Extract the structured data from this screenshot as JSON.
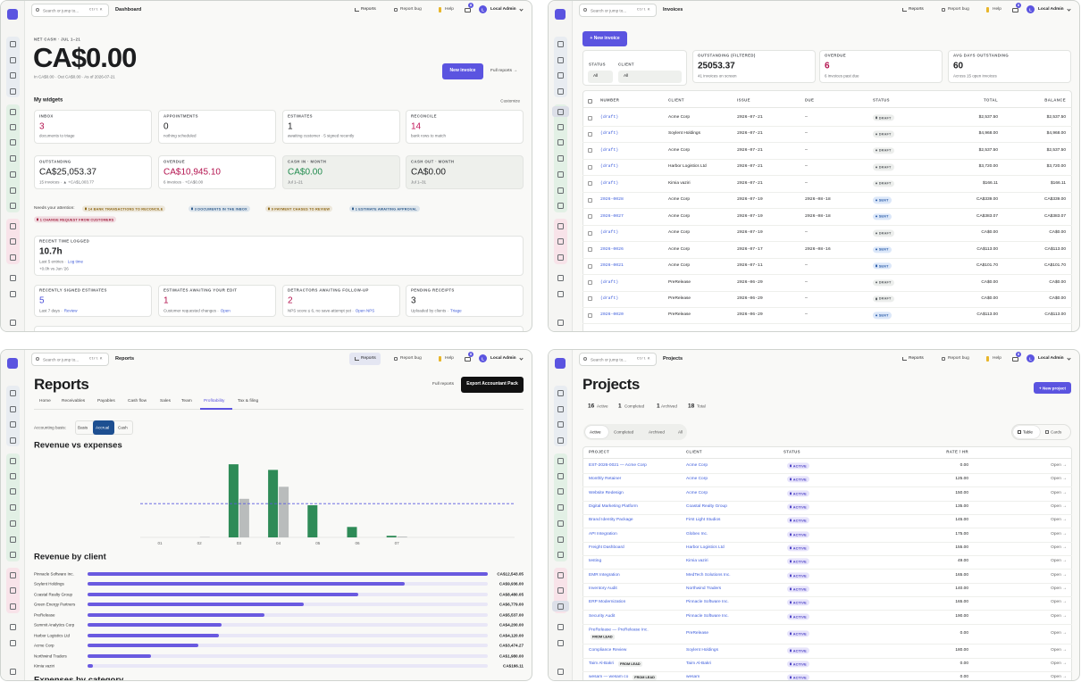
{
  "topbar": {
    "search": "Search or jump to...",
    "shortcut": "Ctrl K",
    "reports": "Reports",
    "report_bug": "Report bug",
    "help": "Help",
    "badge": "8",
    "avatar": "L",
    "user": "Local Admin"
  },
  "dashboard": {
    "page_title": "Dashboard",
    "net_cash_label": "NET CASH · JUL 1–21",
    "net_cash": "CA$0.00",
    "net_cash_sub": "In CA$0.00 · Out CA$0.00 · As of 2026-07-21",
    "new_invoice": "New invoice",
    "full_reports": "Full reports →",
    "widgets_title": "My widgets",
    "customize": "Customize",
    "widgets": [
      {
        "label": "INBOX",
        "value": "3",
        "sub": "documents to triage",
        "color": "#b3124e"
      },
      {
        "label": "APPOINTMENTS",
        "value": "0",
        "sub": "nothing scheduled",
        "color": "#1c1d1f"
      },
      {
        "label": "ESTIMATES",
        "value": "1",
        "sub": "awaiting customer · 5 signed recently",
        "color": "#1c1d1f"
      },
      {
        "label": "RECONCILE",
        "value": "14",
        "sub": "bank rows to match",
        "color": "#c2185b"
      }
    ],
    "money": [
      {
        "label": "OUTSTANDING",
        "value": "CA$25,053.37",
        "sub": "15 invoices · ▲ +CA$1,003.77",
        "color": "#1c1d1f"
      },
      {
        "label": "OVERDUE",
        "value": "CA$10,945.10",
        "sub": "6 invoices · +CA$0.00",
        "color": "#b3124e"
      },
      {
        "label": "CASH IN · MONTH",
        "value": "CA$0.00",
        "sub": "Jul 1–21",
        "color": "#1f8a4c",
        "background": "#eef0ec"
      },
      {
        "label": "CASH OUT · MONTH",
        "value": "CA$0.00",
        "sub": "Jul 1–31",
        "color": "#1c1d1f",
        "background": "#eef0ec"
      }
    ],
    "attention_label": "Needs your attention:",
    "attention": [
      {
        "text": "14 BANK TRANSACTIONS TO RECONCILE",
        "color": "#8a6410"
      },
      {
        "text": "3 DOCUMENTS IN THE INBOX",
        "color": "#2d5a8a"
      },
      {
        "text": "9 PAYMENT CHASES TO REVIEW",
        "color": "#8a6410"
      },
      {
        "text": "1 ESTIMATE AWAITING APPROVAL",
        "color": "#2d5a8a"
      },
      {
        "text": "1 CHANGE REQUEST FROM CUSTOMERS",
        "color": "#a3213f"
      }
    ],
    "time": {
      "label": "RECENT TIME LOGGED",
      "value": "10.7h",
      "sub": "Last 5 entries ·",
      "link": "Log time",
      "delta": "+0.0h vs Jun '26"
    },
    "bottom": [
      {
        "label": "RECENTLY SIGNED ESTIMATES",
        "value": "5",
        "sub": "Last 7 days ·",
        "link": "Review",
        "color": "#4b4fd8"
      },
      {
        "label": "ESTIMATES AWAITING YOUR EDIT",
        "value": "1",
        "sub": "Customer requested changes ·",
        "link": "Open",
        "color": "#b3124e"
      },
      {
        "label": "DETRACTORS AWAITING FOLLOW-UP",
        "value": "2",
        "sub": "NPS score ≤ 6, no save-attempt yet ·",
        "link": "Open NPS",
        "color": "#b3124e"
      },
      {
        "label": "PENDING RECEIPTS",
        "value": "3",
        "sub": "Uploaded by clients ·",
        "link": "Triage",
        "color": "#1c1d1f"
      }
    ]
  },
  "invoices": {
    "page_title": "Invoices",
    "new_invoice": "+ New invoice",
    "status_label": "STATUS",
    "status_value": "All",
    "client_label": "CLIENT",
    "client_value": "All",
    "stats": [
      {
        "label": "OUTSTANDING (FILTERED)",
        "value": "25053.37",
        "sub": "41 invoices on screen",
        "color": "#1c1d1f"
      },
      {
        "label": "OVERDUE",
        "value": "6",
        "sub": "6 invoices past due",
        "color": "#b3124e"
      },
      {
        "label": "AVG DAYS OUTSTANDING",
        "value": "60",
        "sub": "Across 15 open invoices",
        "color": "#1c1d1f"
      }
    ],
    "columns": [
      "NUMBER",
      "CLIENT",
      "ISSUE",
      "DUE",
      "STATUS",
      "TOTAL",
      "BALANCE"
    ],
    "status_colors": {
      "DRAFT": [
        "#eceeec",
        "#5b5f63"
      ],
      "SENT": [
        "#dbe7f9",
        "#2d5ea9"
      ]
    },
    "rows": [
      [
        "(draft)",
        "Acme Corp",
        "2026-07-21",
        "—",
        "DRAFT",
        "$2,537.50",
        "$2,537.50"
      ],
      [
        "(draft)",
        "Soylent Holdings",
        "2026-07-21",
        "—",
        "DRAFT",
        "$4,968.00",
        "$4,968.00"
      ],
      [
        "(draft)",
        "Acme Corp",
        "2026-07-21",
        "—",
        "DRAFT",
        "$2,537.50",
        "$2,537.50"
      ],
      [
        "(draft)",
        "Harbor Logistics Ltd",
        "2026-07-21",
        "—",
        "DRAFT",
        "$3,720.00",
        "$3,720.00"
      ],
      [
        "(draft)",
        "Kimia vaziri",
        "2026-07-21",
        "—",
        "DRAFT",
        "$166.11",
        "$166.11"
      ],
      [
        "2026-0028",
        "Acme Corp",
        "2026-07-19",
        "2026-08-18",
        "SENT",
        "CA$339.00",
        "CA$339.00"
      ],
      [
        "2026-0027",
        "Acme Corp",
        "2026-07-19",
        "2026-08-18",
        "SENT",
        "CA$383.07",
        "CA$383.07"
      ],
      [
        "(draft)",
        "Acme Corp",
        "2026-07-19",
        "—",
        "DRAFT",
        "CA$0.00",
        "CA$0.00"
      ],
      [
        "2026-0026",
        "Acme Corp",
        "2026-07-17",
        "2026-08-16",
        "SENT",
        "CA$113.00",
        "CA$113.00"
      ],
      [
        "2026-0021",
        "Acme Corp",
        "2026-07-11",
        "—",
        "SENT",
        "CA$101.70",
        "CA$101.70"
      ],
      [
        "(draft)",
        "PreRelease",
        "2026-06-29",
        "—",
        "DRAFT",
        "CA$0.00",
        "CA$0.00"
      ],
      [
        "(draft)",
        "PreRelease",
        "2026-06-29",
        "—",
        "DRAFT",
        "CA$0.00",
        "CA$0.00"
      ],
      [
        "2026-0020",
        "PreRelease",
        "2026-06-29",
        "—",
        "SENT",
        "CA$113.00",
        "CA$113.00"
      ]
    ]
  },
  "reports": {
    "page_title": "Reports",
    "full_reports": "Full reports",
    "export": "Export Accountant Pack",
    "tabs": [
      "Home",
      "Receivables",
      "Payables",
      "Cash flow",
      "Sales",
      "Team",
      "Profitability",
      "Tax & filing"
    ],
    "active_tab": 6,
    "basis_label": "Accounting basis:",
    "basis_options": [
      "Basis",
      "Accrual",
      "Cash"
    ],
    "active_basis": 1,
    "revenue_vs_expenses": {
      "type": "bar",
      "title": "Revenue vs expenses",
      "categories": [
        "01",
        "02",
        "03",
        "04",
        "05",
        "06",
        "07"
      ],
      "series": [
        {
          "color": "#2e8b57",
          "values": [
            0,
            0,
            91,
            84,
            40,
            13,
            2
          ]
        },
        {
          "color": "#b9bcbc",
          "values": [
            0,
            0.5,
            48,
            63,
            0,
            0,
            1
          ]
        }
      ],
      "reference_line": 42,
      "reference_color": "#5a5ae0",
      "ylim": [
        0,
        100
      ]
    },
    "revenue_by_client": {
      "type": "bar",
      "title": "Revenue by client",
      "categories": [
        "Pinnacle Software Inc.",
        "Soylent Holdings",
        "Coastal Realty Group",
        "Green Energy Partners",
        "PreRelease",
        "Summit Analytics Corp",
        "Harbor Logistics Ltd",
        "Acme Corp",
        "Northwind Traders",
        "Kimia vaziri"
      ],
      "values": [
        12543.05,
        9936,
        8480.05,
        6779,
        5537,
        4200,
        4120,
        3474.27,
        1980,
        166.11
      ],
      "value_labels": [
        "CA$12,543.05",
        "CA$9,936.00",
        "CA$8,480.05",
        "CA$6,779.00",
        "CA$5,537.00",
        "CA$4,200.00",
        "CA$4,120.00",
        "CA$3,474.27",
        "CA$1,980.00",
        "CA$166.11"
      ],
      "color": "#6a5ae0",
      "xlim": [
        0,
        12543.05
      ]
    },
    "next_section": "Expenses by category"
  },
  "projects": {
    "page_title": "Projects",
    "new_project": "+ New project",
    "counts": [
      {
        "value": "16",
        "label": "Active"
      },
      {
        "value": "1",
        "label": "Completed"
      },
      {
        "value": "1",
        "label": "Archived"
      },
      {
        "value": "18",
        "label": "Total"
      }
    ],
    "filters": [
      "Active",
      "Completed",
      "Archived",
      "All"
    ],
    "views": [
      "Table",
      "Cards"
    ],
    "columns": [
      "PROJECT",
      "CLIENT",
      "STATUS",
      "RATE / HR"
    ],
    "open_label": "Open →",
    "rows": [
      {
        "project": "EST-2026-0021 — Acme Corp",
        "client": "Acme Corp",
        "status": "ACTIVE",
        "rate": "0.00"
      },
      {
        "project": "Monthly Retainer",
        "client": "Acme Corp",
        "status": "ACTIVE",
        "rate": "125.00"
      },
      {
        "project": "Website Redesign",
        "client": "Acme Corp",
        "status": "ACTIVE",
        "rate": "150.00"
      },
      {
        "project": "Digital Marketing Platform",
        "client": "Coastal Realty Group",
        "status": "ACTIVE",
        "rate": "135.00"
      },
      {
        "project": "Brand Identity Package",
        "client": "First Light Studios",
        "status": "ACTIVE",
        "rate": "145.00"
      },
      {
        "project": "API Integration",
        "client": "Globex Inc.",
        "status": "ACTIVE",
        "rate": "175.00"
      },
      {
        "project": "Freight Dashboard",
        "client": "Harbor Logistics Ltd",
        "status": "ACTIVE",
        "rate": "155.00"
      },
      {
        "project": "testing",
        "client": "Kimia vaziri",
        "status": "ACTIVE",
        "rate": "49.00"
      },
      {
        "project": "EMR Integration",
        "client": "MedTech Solutions Inc.",
        "status": "ACTIVE",
        "rate": "165.00"
      },
      {
        "project": "Inventory Audit",
        "client": "Northwind Traders",
        "status": "ACTIVE",
        "rate": "140.00"
      },
      {
        "project": "ERP Modernization",
        "client": "Pinnacle Software Inc.",
        "status": "ACTIVE",
        "rate": "165.00"
      },
      {
        "project": "Security Audit",
        "client": "Pinnacle Software Inc.",
        "status": "ACTIVE",
        "rate": "190.00"
      },
      {
        "project": "PreRelease — PreRelease Inc.",
        "tag": "FROM LEAD",
        "client": "PreRelease",
        "status": "ACTIVE",
        "rate": "0.00"
      },
      {
        "project": "Compliance Review",
        "client": "Soylent Holdings",
        "status": "ACTIVE",
        "rate": "180.00"
      },
      {
        "project": "Taim Al-Bakri",
        "tag": "FROM LEAD",
        "client": "Taim Al-Bakri",
        "status": "ACTIVE",
        "rate": "0.00"
      },
      {
        "project": "wesam — wesam co",
        "tag": "FROM LEAD",
        "client": "wesam",
        "status": "ACTIVE",
        "rate": "0.00"
      }
    ]
  }
}
